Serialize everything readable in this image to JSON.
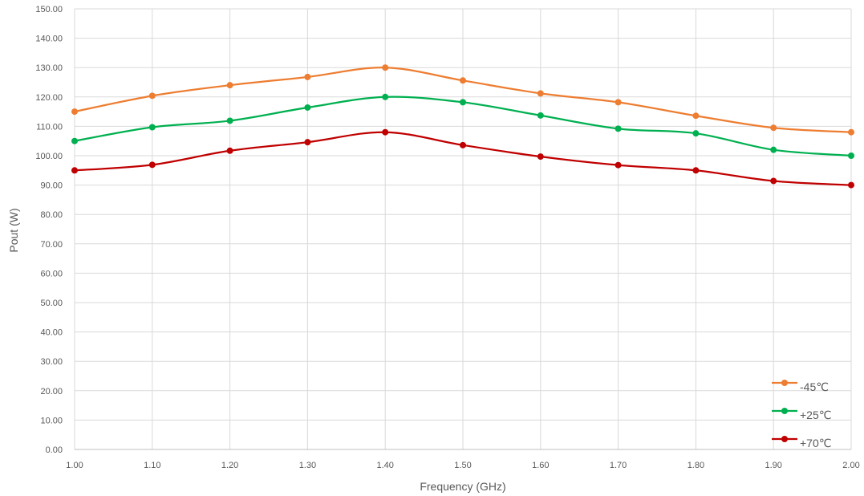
{
  "chart_data": {
    "type": "line",
    "title": "",
    "xlabel": "Frequency (GHz)",
    "ylabel": "Pout (W)",
    "x": [
      1.0,
      1.1,
      1.2,
      1.3,
      1.4,
      1.5,
      1.6,
      1.7,
      1.8,
      1.9,
      2.0
    ],
    "x_tick_labels": [
      "1.00",
      "1.10",
      "1.20",
      "1.30",
      "1.40",
      "1.50",
      "1.60",
      "1.70",
      "1.80",
      "1.90",
      "2.00"
    ],
    "xlim": [
      1.0,
      2.0
    ],
    "ylim": [
      0,
      150
    ],
    "y_tick_labels": [
      "0.00",
      "10.00",
      "20.00",
      "30.00",
      "40.00",
      "50.00",
      "60.00",
      "70.00",
      "80.00",
      "90.00",
      "100.00",
      "110.00",
      "120.00",
      "130.00",
      "140.00",
      "150.00"
    ],
    "y_ticks": [
      0,
      10,
      20,
      30,
      40,
      50,
      60,
      70,
      80,
      90,
      100,
      110,
      120,
      130,
      140,
      150
    ],
    "grid": true,
    "smooth": true,
    "legend_position": "bottom-right",
    "series": [
      {
        "name": "-45℃",
        "color": "#ED7D31",
        "values": [
          115.0,
          120.4,
          124.0,
          126.8,
          130.0,
          125.6,
          121.2,
          118.2,
          113.6,
          109.5,
          108.0
        ]
      },
      {
        "name": "+25℃",
        "color": "#00B050",
        "values": [
          105.0,
          109.7,
          111.9,
          116.4,
          120.0,
          118.2,
          113.7,
          109.2,
          107.6,
          102.0,
          100.0
        ]
      },
      {
        "name": "+70℃",
        "color": "#C00000",
        "values": [
          95.0,
          96.9,
          101.7,
          104.6,
          108.0,
          103.6,
          99.7,
          96.8,
          95.0,
          91.4,
          90.0
        ]
      }
    ]
  }
}
